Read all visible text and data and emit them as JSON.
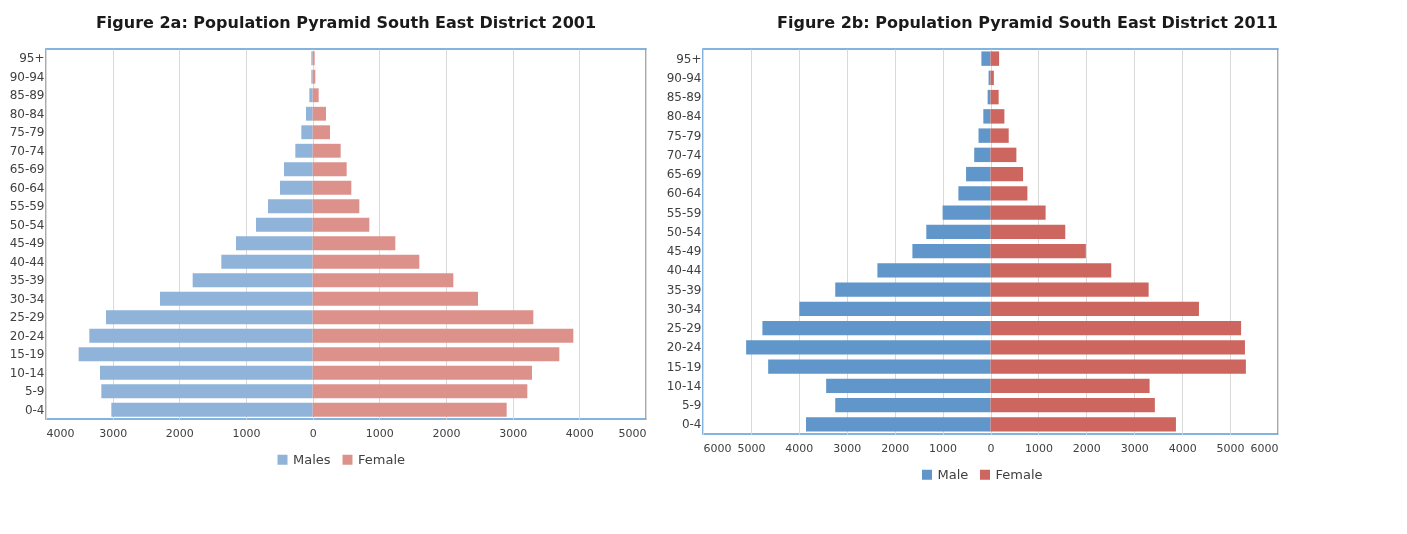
{
  "chart_data": [
    {
      "type": "bar",
      "orientation": "horizontal",
      "stacked": true,
      "title": "Figure 2a: Population Pyramid South East District 2001",
      "categories": [
        "95+",
        "90-94",
        "85-89",
        "80-84",
        "75-79",
        "70-74",
        "65-69",
        "60-64",
        "55-59",
        "50-54",
        "45-49",
        "40-44",
        "35-39",
        "30-34",
        "25-29",
        "20-24",
        "15-19",
        "10-14",
        "5-9",
        "0-4"
      ],
      "series": [
        {
          "name": "Males",
          "color": "#8fb3d9",
          "values": [
            -20,
            -20,
            -50,
            -100,
            -170,
            -260,
            -430,
            -490,
            -670,
            -850,
            -1150,
            -1370,
            -1800,
            -2290,
            -3100,
            -3350,
            -3510,
            -3190,
            -3170,
            -3020
          ]
        },
        {
          "name": "Female",
          "color": "#dc928a",
          "values": [
            30,
            40,
            90,
            200,
            260,
            420,
            510,
            580,
            700,
            850,
            1240,
            1600,
            2110,
            2480,
            3310,
            3910,
            3700,
            3290,
            3220,
            2910
          ]
        }
      ],
      "xlim": [
        -4000,
        5000
      ],
      "xticks": [
        {
          "value": -4000,
          "label": "4000"
        },
        {
          "value": -3000,
          "label": "3000"
        },
        {
          "value": -2000,
          "label": "2000"
        },
        {
          "value": -1000,
          "label": "1000"
        },
        0,
        1000,
        2000,
        3000,
        4000,
        5000
      ],
      "grid": "x",
      "legend": "bottom"
    },
    {
      "type": "bar",
      "orientation": "horizontal",
      "stacked": true,
      "title": "Figure 2b: Population Pyramid South East District 2011",
      "categories": [
        "95+",
        "90-94",
        "85-89",
        "80-84",
        "75-79",
        "70-74",
        "65-69",
        "60-64",
        "55-59",
        "50-54",
        "45-49",
        "40-44",
        "35-39",
        "30-34",
        "25-29",
        "20-24",
        "15-19",
        "10-14",
        "5-9",
        "0-4"
      ],
      "series": [
        {
          "name": "Male",
          "color": "#6096c9",
          "values": [
            -190,
            -40,
            -60,
            -150,
            -250,
            -340,
            -510,
            -670,
            -1000,
            -1340,
            -1630,
            -2360,
            -3240,
            -3990,
            -4760,
            -5100,
            -4640,
            -3430,
            -3240,
            -3850
          ]
        },
        {
          "name": "Female",
          "color": "#cd665e",
          "values": [
            180,
            70,
            170,
            290,
            380,
            540,
            680,
            770,
            1150,
            1560,
            1990,
            2520,
            3300,
            4350,
            5230,
            5310,
            5330,
            3320,
            3430,
            3870
          ]
        }
      ],
      "xlim": [
        -6000,
        6000
      ],
      "xticks": [
        {
          "value": -6000,
          "label": "6000"
        },
        {
          "value": -5000,
          "label": "5000"
        },
        {
          "value": -4000,
          "label": "4000"
        },
        {
          "value": -3000,
          "label": "3000"
        },
        {
          "value": -2000,
          "label": "2000"
        },
        {
          "value": -1000,
          "label": "1000"
        },
        0,
        1000,
        2000,
        3000,
        4000,
        5000,
        6000
      ],
      "grid": "x",
      "legend": "bottom"
    }
  ]
}
